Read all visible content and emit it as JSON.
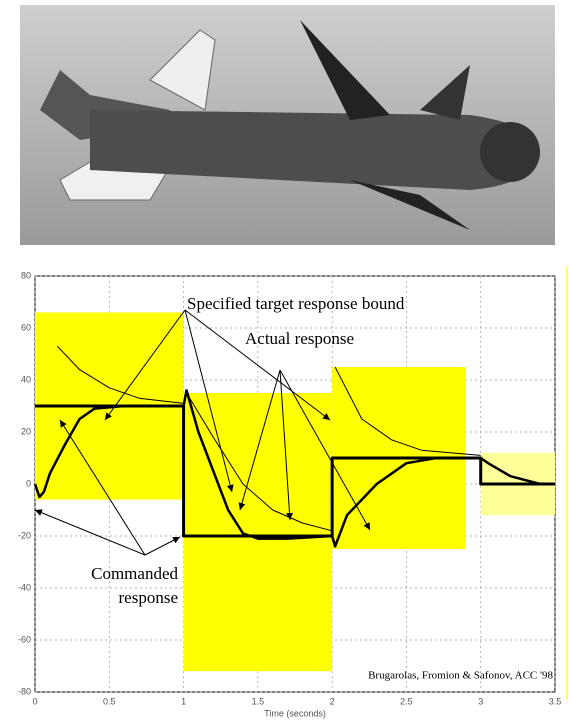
{
  "chart_data": {
    "type": "line",
    "xlabel": "Time (seconds)",
    "xlim": [
      0,
      3.5
    ],
    "xticks": [
      0,
      0.5,
      1,
      1.5,
      2,
      2.5,
      3,
      3.5
    ],
    "ylim": [
      -80,
      80
    ],
    "yticks": [
      -80,
      -60,
      -40,
      -20,
      0,
      20,
      40,
      60,
      80
    ],
    "grid": true,
    "annotations": [
      "Specified target response bound",
      "Actual response",
      "Commanded response",
      "Brugarolas, Fromion & Safonov, ACC '98"
    ],
    "bounds": [
      {
        "x": [
          0,
          1
        ],
        "y": [
          -6,
          66
        ],
        "color": "#ffff00"
      },
      {
        "x": [
          1,
          2
        ],
        "y": [
          -72,
          35
        ],
        "color": "#ffff00"
      },
      {
        "x": [
          2,
          2.9
        ],
        "y": [
          -25,
          45
        ],
        "color": "#ffff00"
      },
      {
        "x": [
          3,
          3.5
        ],
        "y": [
          -12,
          12
        ],
        "color": "#ffff99"
      }
    ],
    "series": [
      {
        "color": "#000000",
        "width": 3,
        "x": [
          0,
          1,
          1,
          2,
          2,
          3,
          3,
          3.5
        ],
        "values": [
          30,
          30,
          -20,
          -20,
          10,
          10,
          0,
          0
        ]
      },
      {
        "color": "#000000",
        "width": 2.5,
        "x": [
          0,
          0.03,
          0.06,
          0.1,
          0.2,
          0.3,
          0.4,
          0.6,
          1.0,
          1.02,
          1.1,
          1.2,
          1.3,
          1.4,
          1.5,
          1.7,
          2.0,
          2.02,
          2.1,
          2.3,
          2.5,
          2.7,
          3.0,
          3.05,
          3.2,
          3.4,
          3.5
        ],
        "values": [
          0,
          -5,
          -3,
          4,
          15,
          25,
          29,
          30,
          30,
          36,
          20,
          5,
          -10,
          -19,
          -21,
          -21,
          -20,
          -24,
          -12,
          0,
          8,
          10,
          10,
          8,
          3,
          0,
          0
        ]
      },
      {
        "color": "#000000",
        "width": 1,
        "x": [
          0.15,
          0.3,
          0.5,
          0.7,
          1.0,
          1.0,
          1.02,
          1.2,
          1.4,
          1.6,
          1.8,
          2.0,
          2.0,
          2.02,
          2.2,
          2.4,
          2.6,
          3.0
        ],
        "values": [
          53,
          44,
          37,
          33,
          31,
          null,
          35,
          18,
          0,
          -10,
          -15,
          -18,
          null,
          45,
          25,
          17,
          13,
          11
        ]
      }
    ]
  }
}
